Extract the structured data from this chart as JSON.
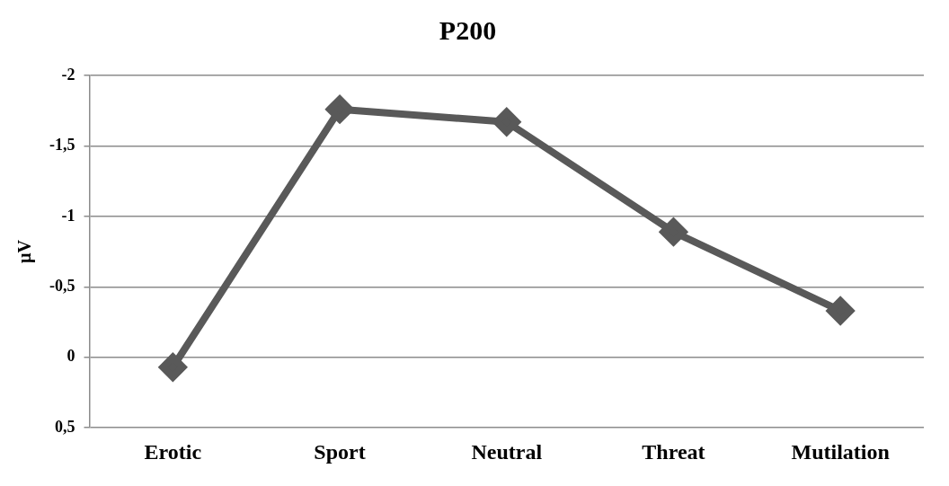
{
  "chart_data": {
    "type": "line",
    "title": "P200",
    "ylabel": "µV",
    "categories": [
      "Erotic",
      "Sport",
      "Neutral",
      "Threat",
      "Mutilation"
    ],
    "series": [
      {
        "color": "#595959",
        "values": [
          0.07,
          -1.76,
          -1.67,
          -0.89,
          -0.33
        ]
      }
    ],
    "ylim": [
      0.5,
      -2
    ],
    "yticks": [
      -2,
      {
        "value": -1.5,
        "label": "-1,5"
      },
      -1,
      {
        "value": -0.5,
        "label": "-0,5"
      },
      0,
      {
        "value": 0.5,
        "label": "0,5"
      }
    ],
    "grid": "y",
    "marker": "diamond",
    "line_style": "solid",
    "legend": false
  }
}
